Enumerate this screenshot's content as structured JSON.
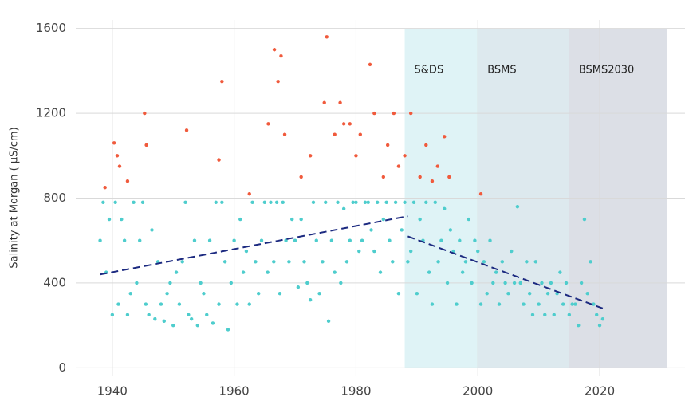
{
  "chart_data": {
    "type": "scatter",
    "y_label": "Salinity at Morgan ( µS/cm)",
    "xlim": [
      1934,
      2034
    ],
    "ylim": [
      -40,
      1640
    ],
    "xticks": [
      1940,
      1960,
      1980,
      2000,
      2020
    ],
    "yticks": [
      0,
      400,
      800,
      1200,
      1600
    ],
    "grid": true,
    "regions": [
      {
        "label": "S&DS",
        "start": 1988,
        "end": 2000,
        "color": "#dff3f6"
      },
      {
        "label": "BSMS",
        "start": 2000,
        "end": 2015,
        "color": "#dde9ee"
      },
      {
        "label": "BSMS2030",
        "start": 2015,
        "end": 2031,
        "color": "#dcdfe6"
      }
    ],
    "region_range": [
      0,
      1600
    ],
    "series": [
      {
        "color": "#4ecdcd",
        "x": [
          1938,
          1938.5,
          1939,
          1939.5,
          1940,
          1940.5,
          1941,
          1941.5,
          1942,
          1942.5,
          1943,
          1943.5,
          1944,
          1944.5,
          1945,
          1945.5,
          1946,
          1946.5,
          1947,
          1947.5,
          1948,
          1948.5,
          1949,
          1949.5,
          1950,
          1950.5,
          1951,
          1951.5,
          1952,
          1952.5,
          1953,
          1953.5,
          1954,
          1954.5,
          1955,
          1955.5,
          1956,
          1956.5,
          1957,
          1957.5,
          1958,
          1958.5,
          1959,
          1959.5,
          1960,
          1960.5,
          1961,
          1961.5,
          1962,
          1962.5,
          1963,
          1963.5,
          1964,
          1964.5,
          1965,
          1965.5,
          1966,
          1966.5,
          1967,
          1967.5,
          1968,
          1968.5,
          1969,
          1969.5,
          1970,
          1970.5,
          1971,
          1971.5,
          1972,
          1972.5,
          1973,
          1973.5,
          1974,
          1974.5,
          1975,
          1975.5,
          1976,
          1976.5,
          1977,
          1977.5,
          1978,
          1978.5,
          1979,
          1979.5,
          1980,
          1980.5,
          1981,
          1981.5,
          1982,
          1982.5,
          1983,
          1983.5,
          1984,
          1984.5,
          1985,
          1985.5,
          1986,
          1986.5,
          1987,
          1987.5,
          1988,
          1988.5,
          1989,
          1989.5,
          1990,
          1990.5,
          1991,
          1991.5,
          1992,
          1992.5,
          1993,
          1993.5,
          1994,
          1994.5,
          1995,
          1995.5,
          1996,
          1996.5,
          1997,
          1997.5,
          1998,
          1998.5,
          1999,
          1999.5,
          2000,
          2000.5,
          2001,
          2001.5,
          2002,
          2002.5,
          2003,
          2003.5,
          2004,
          2004.5,
          2005,
          2005.5,
          2006,
          2006.5,
          2007,
          2007.5,
          2008,
          2008.5,
          2009,
          2009.5,
          2010,
          2010.5,
          2011,
          2011.5,
          2012,
          2012.5,
          2013,
          2013.5,
          2014,
          2014.5,
          2015,
          2015.5,
          2016,
          2016.5,
          2017,
          2017.5,
          2018,
          2018.5,
          2019,
          2019.5,
          2020,
          2020.5
        ],
        "values": [
          600,
          780,
          450,
          700,
          250,
          780,
          300,
          700,
          600,
          250,
          350,
          780,
          400,
          600,
          780,
          300,
          250,
          650,
          230,
          500,
          300,
          220,
          350,
          400,
          200,
          450,
          300,
          500,
          780,
          250,
          230,
          600,
          200,
          400,
          350,
          250,
          600,
          210,
          780,
          300,
          780,
          500,
          180,
          400,
          600,
          300,
          700,
          450,
          550,
          300,
          780,
          500,
          350,
          600,
          780,
          450,
          780,
          500,
          780,
          350,
          780,
          600,
          500,
          700,
          600,
          380,
          700,
          500,
          400,
          320,
          780,
          600,
          350,
          500,
          780,
          220,
          600,
          450,
          780,
          400,
          750,
          500,
          600,
          780,
          780,
          550,
          600,
          780,
          780,
          650,
          550,
          780,
          450,
          700,
          780,
          600,
          500,
          780,
          350,
          650,
          780,
          500,
          550,
          780,
          350,
          700,
          600,
          780,
          450,
          300,
          780,
          500,
          600,
          750,
          400,
          650,
          550,
          300,
          600,
          450,
          500,
          700,
          400,
          600,
          550,
          300,
          500,
          350,
          600,
          400,
          450,
          300,
          500,
          400,
          350,
          550,
          400,
          760,
          400,
          300,
          500,
          350,
          250,
          500,
          300,
          400,
          250,
          350,
          400,
          250,
          350,
          450,
          300,
          400,
          250,
          300,
          300,
          200,
          400,
          700,
          350,
          500,
          300,
          250,
          200,
          230
        ]
      },
      {
        "color": "#f05a3c",
        "x": [
          1938.8,
          1940.3,
          1940.8,
          1941.2,
          1942.5,
          1945.3,
          1945.6,
          1952.2,
          1957.5,
          1958.0,
          1962.5,
          1965.6,
          1966.6,
          1967.2,
          1967.7,
          1968.3,
          1971.0,
          1972.5,
          1974.8,
          1975.2,
          1976.5,
          1977.4,
          1978.0,
          1979.0,
          1980.0,
          1980.7,
          1982.3,
          1983.0,
          1984.5,
          1985.2,
          1986.2,
          1987.0,
          1988.0,
          1989.0,
          1990.5,
          1991.5,
          1992.5,
          1993.4,
          1994.5,
          1995.3,
          2000.5
        ],
        "values": [
          850,
          1060,
          1000,
          950,
          880,
          1200,
          1050,
          1120,
          980,
          1350,
          820,
          1150,
          1500,
          1350,
          1470,
          1100,
          900,
          1000,
          1250,
          1560,
          1100,
          1250,
          1150,
          1150,
          1000,
          1100,
          1430,
          1200,
          900,
          1050,
          1200,
          950,
          1000,
          1200,
          900,
          1050,
          880,
          950,
          1090,
          900,
          820
        ]
      }
    ],
    "trends": [
      {
        "color": "#1c2a80",
        "x": [
          1938,
          1988.5
        ],
        "values": [
          440,
          715
        ]
      },
      {
        "color": "#1c2a80",
        "x": [
          1988.5,
          2020.5
        ],
        "values": [
          620,
          280
        ]
      }
    ]
  }
}
